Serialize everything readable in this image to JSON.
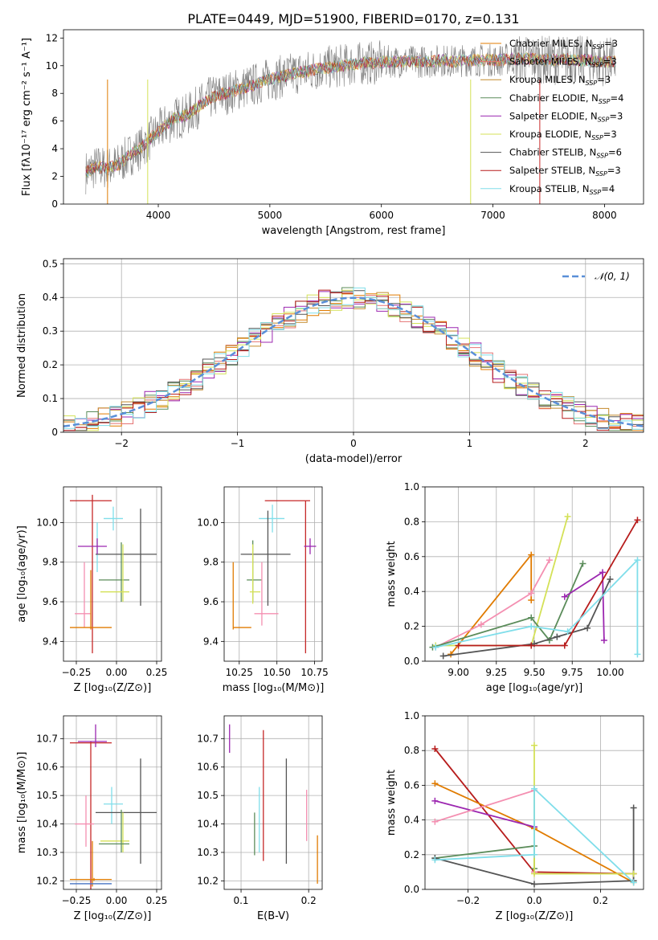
{
  "title": "PLATE=0449, MJD=51900, FIBERID=0170, z=0.131",
  "model_colors": [
    "#e07b00",
    "#8c5a3c",
    "#b07010",
    "#2e7d32",
    "#9c27b0",
    "#d4e157",
    "#424242",
    "#c62828",
    "#4dd0e1"
  ],
  "legend": [
    {
      "label": "Chabrier MILES, N",
      "sub": "SSP",
      "tail": "=3",
      "color": "#e07b00"
    },
    {
      "label": "Salpeter MILES, N",
      "sub": "SSP",
      "tail": "=3",
      "color": "#e57373"
    },
    {
      "label": "Kroupa MILES, N",
      "sub": "SSP",
      "tail": "=3",
      "color": "#c48a2c"
    },
    {
      "label": "Chabrier ELODIE, N",
      "sub": "SSP",
      "tail": "=4",
      "color": "#5b8c5a"
    },
    {
      "label": "Salpeter ELODIE, N",
      "sub": "SSP",
      "tail": "=3",
      "color": "#9c27b0"
    },
    {
      "label": "Kroupa ELODIE, N",
      "sub": "SSP",
      "tail": "=3",
      "color": "#d4e157"
    },
    {
      "label": "Chabrier STELIB, N",
      "sub": "SSP",
      "tail": "=6",
      "color": "#555555"
    },
    {
      "label": "Salpeter STELIB, N",
      "sub": "SSP",
      "tail": "=3",
      "color": "#b71c1c"
    },
    {
      "label": "Kroupa STELIB, N",
      "sub": "SSP",
      "tail": "=4",
      "color": "#80deea"
    }
  ],
  "chart_data": [
    {
      "type": "line",
      "name": "spectrum",
      "xlabel": "wavelength [Angstrom, rest frame]",
      "ylabel": "Flux [fλ10⁻¹⁷ erg cm⁻² s⁻¹ A⁻¹]",
      "xlim": [
        3150,
        8350
      ],
      "ylim": [
        0,
        12.6
      ],
      "xticks": [
        4000,
        5000,
        6000,
        7000,
        8000
      ],
      "yticks": [
        0,
        2,
        4,
        6,
        8,
        10,
        12
      ],
      "x": [
        3350,
        3450,
        3550,
        3650,
        3750,
        3850,
        3950,
        4050,
        4150,
        4250,
        4350,
        4450,
        4550,
        4650,
        4750,
        4850,
        4950,
        5050,
        5150,
        5250,
        5350,
        5450,
        5550,
        5650,
        5750,
        5850,
        5950,
        6050,
        6150,
        6250,
        6350,
        6450,
        6550,
        6650,
        6750,
        6850,
        6950,
        7050,
        7150,
        7250,
        7350,
        7450,
        7550,
        7650,
        7750,
        7850,
        7950,
        8050
      ],
      "y": [
        2.3,
        2.7,
        2.6,
        2.9,
        3.6,
        4.1,
        4.9,
        5.6,
        6.2,
        6.4,
        7.0,
        7.6,
        7.9,
        8.1,
        8.4,
        8.6,
        8.9,
        9.1,
        9.3,
        9.5,
        9.6,
        9.8,
        9.9,
        10.0,
        10.1,
        10.2,
        10.2,
        10.3,
        10.3,
        10.3,
        10.3,
        10.3,
        10.4,
        10.3,
        10.4,
        10.4,
        10.4,
        10.4,
        10.5,
        10.5,
        10.5,
        10.4,
        10.4,
        10.5,
        10.4,
        10.4,
        10.3,
        10.3
      ]
    },
    {
      "type": "line",
      "name": "residuals",
      "xlabel": "(data-model)/error",
      "ylabel": "Normed distribution",
      "xlim": [
        -2.5,
        2.5
      ],
      "ylim": [
        0,
        0.515
      ],
      "xticks": [
        -2,
        -1,
        0,
        1,
        2
      ],
      "yticks": [
        0.0,
        0.1,
        0.2,
        0.3,
        0.4,
        0.5
      ],
      "legend": "𝒩(0, 1)"
    },
    {
      "type": "scatter",
      "name": "age_vs_Z",
      "xlabel": "Z [log₁₀(Z/Z⊙)]",
      "ylabel": "age  [log₁₀(age/yr)]",
      "xlim": [
        -0.33,
        0.28
      ],
      "ylim": [
        9.3,
        10.18
      ],
      "xticks": [
        -0.25,
        0.0,
        0.25
      ],
      "yticks": [
        9.4,
        9.6,
        9.8,
        10.0
      ],
      "points": [
        {
          "x": -0.16,
          "xe": [
            -0.29,
            -0.03
          ],
          "y": 10.11,
          "ye": [
            10.11,
            10.11
          ],
          "c": "#c62828"
        },
        {
          "x": -0.15,
          "xe": [
            -0.15,
            -0.15
          ],
          "y": 9.72,
          "ye": [
            9.34,
            10.14
          ],
          "c": "#c62828"
        },
        {
          "x": -0.02,
          "xe": [
            -0.08,
            0.04
          ],
          "y": 10.02,
          "ye": [
            9.96,
            10.08
          ],
          "c": "#80deea"
        },
        {
          "x": -0.12,
          "xe": [
            -0.12,
            -0.12
          ],
          "y": 9.92,
          "ye": [
            9.75,
            10.0
          ],
          "c": "#80deea"
        },
        {
          "x": 0.15,
          "xe": [
            -0.13,
            0.25
          ],
          "y": 9.84,
          "ye": [
            9.58,
            10.07
          ],
          "c": "#555555"
        },
        {
          "x": -0.12,
          "xe": [
            -0.24,
            -0.06
          ],
          "y": 9.88,
          "ye": [
            9.84,
            9.92
          ],
          "c": "#9c27b0"
        },
        {
          "x": 0.03,
          "xe": [
            -0.11,
            0.08
          ],
          "y": 9.71,
          "ye": [
            9.6,
            9.9
          ],
          "c": "#5b8c5a"
        },
        {
          "x": 0.04,
          "xe": [
            -0.1,
            0.08
          ],
          "y": 9.65,
          "ye": [
            9.6,
            9.89
          ],
          "c": "#d4e157"
        },
        {
          "x": -0.2,
          "xe": [
            -0.26,
            -0.16
          ],
          "y": 9.54,
          "ye": [
            9.47,
            9.8
          ],
          "c": "#f48fb1"
        },
        {
          "x": -0.13,
          "xe": [
            -0.29,
            -0.03
          ],
          "y": 9.47,
          "ye": [
            9.47,
            9.47
          ],
          "c": "#e07b00"
        },
        {
          "x": -0.16,
          "xe": [
            -0.16,
            -0.16
          ],
          "y": 9.6,
          "ye": [
            9.46,
            9.76
          ],
          "c": "#e07b00"
        }
      ]
    },
    {
      "type": "scatter",
      "name": "age_vs_mass",
      "xlabel": "mass [log₁₀(M/M⊙)]",
      "ylabel": "",
      "xlim": [
        10.15,
        10.8
      ],
      "ylim": [
        9.3,
        10.18
      ],
      "xticks": [
        10.25,
        10.5,
        10.75
      ],
      "yticks": [
        9.4,
        9.6,
        9.8,
        10.0
      ],
      "points": [
        {
          "x": 10.58,
          "xe": [
            10.42,
            10.72
          ],
          "y": 10.11,
          "ye": [
            10.11,
            10.11
          ],
          "c": "#c62828"
        },
        {
          "x": 10.69,
          "xe": [
            10.69,
            10.69
          ],
          "y": 9.72,
          "ye": [
            9.34,
            10.11
          ],
          "c": "#c62828"
        },
        {
          "x": 10.47,
          "xe": [
            10.38,
            10.55
          ],
          "y": 10.02,
          "ye": [
            9.95,
            10.09
          ],
          "c": "#80deea"
        },
        {
          "x": 10.44,
          "xe": [
            10.26,
            10.59
          ],
          "y": 9.84,
          "ye": [
            9.58,
            10.06
          ],
          "c": "#555555"
        },
        {
          "x": 10.72,
          "xe": [
            10.68,
            10.76
          ],
          "y": 9.88,
          "ye": [
            9.84,
            9.92
          ],
          "c": "#9c27b0"
        },
        {
          "x": 10.34,
          "xe": [
            10.3,
            10.4
          ],
          "y": 9.71,
          "ye": [
            9.6,
            9.91
          ],
          "c": "#5b8c5a"
        },
        {
          "x": 10.34,
          "xe": [
            10.32,
            10.39
          ],
          "y": 9.65,
          "ye": [
            9.59,
            9.89
          ],
          "c": "#d4e157"
        },
        {
          "x": 10.4,
          "xe": [
            10.35,
            10.51
          ],
          "y": 9.54,
          "ye": [
            9.48,
            9.8
          ],
          "c": "#f48fb1"
        },
        {
          "x": 10.21,
          "xe": [
            10.21,
            10.33
          ],
          "y": 9.47,
          "ye": [
            9.47,
            9.47
          ],
          "c": "#e07b00"
        },
        {
          "x": 10.21,
          "xe": [
            10.21,
            10.21
          ],
          "y": 9.6,
          "ye": [
            9.46,
            9.8
          ],
          "c": "#e07b00"
        }
      ]
    },
    {
      "type": "line",
      "name": "mass_weight_vs_age",
      "xlabel": "age  [log₁₀(age/yr)]",
      "ylabel": "mass weight",
      "xlim": [
        8.78,
        10.22
      ],
      "ylim": [
        0,
        1.0
      ],
      "xticks": [
        9.0,
        9.25,
        9.5,
        9.75,
        10.0
      ],
      "yticks": [
        0.0,
        0.2,
        0.4,
        0.6,
        0.8,
        1.0
      ],
      "series": [
        {
          "c": "#e07b00",
          "x": [
            8.95,
            9.48,
            9.48
          ],
          "y": [
            0.04,
            0.61,
            0.35
          ]
        },
        {
          "c": "#d4e157",
          "x": [
            8.85,
            9.48,
            9.72
          ],
          "y": [
            0.09,
            0.09,
            0.83
          ]
        },
        {
          "c": "#f48fb1",
          "x": [
            8.85,
            9.15,
            9.48,
            9.6
          ],
          "y": [
            0.08,
            0.21,
            0.39,
            0.58
          ]
        },
        {
          "c": "#5b8c5a",
          "x": [
            8.83,
            9.48,
            9.6,
            9.82
          ],
          "y": [
            0.08,
            0.25,
            0.12,
            0.56
          ]
        },
        {
          "c": "#9c27b0",
          "x": [
            9.7,
            9.95,
            9.96
          ],
          "y": [
            0.37,
            0.51,
            0.12
          ]
        },
        {
          "c": "#555555",
          "x": [
            8.9,
            9.5,
            9.65,
            9.85,
            10.0
          ],
          "y": [
            0.03,
            0.1,
            0.14,
            0.19,
            0.47
          ]
        },
        {
          "c": "#b71c1c",
          "x": [
            9.0,
            9.48,
            9.7,
            10.18
          ],
          "y": [
            0.09,
            0.09,
            0.09,
            0.81
          ]
        },
        {
          "c": "#80deea",
          "x": [
            8.85,
            9.48,
            9.72,
            10.18,
            10.18
          ],
          "y": [
            0.08,
            0.2,
            0.17,
            0.58,
            0.04
          ]
        }
      ]
    },
    {
      "type": "scatter",
      "name": "mass_vs_Z",
      "xlabel": "Z [log₁₀(Z/Z⊙)]",
      "ylabel": "mass [log₁₀(M/M⊙)]",
      "xlim": [
        -0.33,
        0.28
      ],
      "ylim": [
        10.17,
        10.78
      ],
      "xticks": [
        -0.25,
        0.0,
        0.25
      ],
      "yticks": [
        10.2,
        10.3,
        10.4,
        10.5,
        10.6,
        10.7
      ],
      "points": [
        {
          "x": -0.16,
          "xe": [
            -0.29,
            -0.03
          ],
          "y": 10.685,
          "ye": [
            10.17,
            10.69
          ],
          "c": "#c62828"
        },
        {
          "x": -0.13,
          "xe": [
            -0.24,
            -0.06
          ],
          "y": 10.69,
          "ye": [
            10.67,
            10.75
          ],
          "c": "#9c27b0"
        },
        {
          "x": -0.03,
          "xe": [
            -0.08,
            0.04
          ],
          "y": 10.47,
          "ye": [
            10.4,
            10.53
          ],
          "c": "#80deea"
        },
        {
          "x": 0.15,
          "xe": [
            -0.13,
            0.25
          ],
          "y": 10.44,
          "ye": [
            10.26,
            10.63
          ],
          "c": "#555555"
        },
        {
          "x": 0.04,
          "xe": [
            -0.1,
            0.08
          ],
          "y": 10.34,
          "ye": [
            10.3,
            10.44
          ],
          "c": "#d4e157"
        },
        {
          "x": 0.03,
          "xe": [
            -0.11,
            0.08
          ],
          "y": 10.33,
          "ye": [
            10.3,
            10.45
          ],
          "c": "#5b8c5a"
        },
        {
          "x": -0.19,
          "xe": [
            -0.26,
            -0.14
          ],
          "y": 10.4,
          "ye": [
            10.32,
            10.5
          ],
          "c": "#f48fb1"
        },
        {
          "x": -0.14,
          "xe": [
            -0.29,
            -0.03
          ],
          "y": 10.205,
          "ye": [
            10.2,
            10.21
          ],
          "c": "#e07b00"
        },
        {
          "x": -0.15,
          "xe": [
            -0.15,
            -0.15
          ],
          "y": 10.28,
          "ye": [
            10.18,
            10.34
          ],
          "c": "#e07b00"
        },
        {
          "x": -0.15,
          "xe": [
            -0.29,
            -0.03
          ],
          "y": 10.19,
          "ye": [
            10.19,
            10.19
          ],
          "c": "#4472c4"
        }
      ]
    },
    {
      "type": "scatter",
      "name": "mass_vs_EBV",
      "xlabel": "E(B-V)",
      "ylabel": "",
      "xlim": [
        0.075,
        0.22
      ],
      "ylim": [
        10.17,
        10.78
      ],
      "xticks": [
        0.1,
        0.2
      ],
      "yticks": [
        10.2,
        10.3,
        10.4,
        10.5,
        10.6,
        10.7
      ],
      "points": [
        {
          "x": 0.083,
          "xe": [
            0.083,
            0.083
          ],
          "y": 10.7,
          "ye": [
            10.65,
            10.75
          ],
          "c": "#9c27b0"
        },
        {
          "x": 0.133,
          "xe": [
            0.133,
            0.133
          ],
          "y": 10.5,
          "ye": [
            10.27,
            10.73
          ],
          "c": "#c62828"
        },
        {
          "x": 0.127,
          "xe": [
            0.127,
            0.127
          ],
          "y": 10.4,
          "ye": [
            10.3,
            10.53
          ],
          "c": "#80deea"
        },
        {
          "x": 0.12,
          "xe": [
            0.12,
            0.12
          ],
          "y": 10.36,
          "ye": [
            10.29,
            10.44
          ],
          "c": "#5b8c5a"
        },
        {
          "x": 0.167,
          "xe": [
            0.167,
            0.167
          ],
          "y": 10.44,
          "ye": [
            10.26,
            10.63
          ],
          "c": "#555555"
        },
        {
          "x": 0.197,
          "xe": [
            0.197,
            0.197
          ],
          "y": 10.43,
          "ye": [
            10.34,
            10.52
          ],
          "c": "#f48fb1"
        },
        {
          "x": 0.213,
          "xe": [
            0.213,
            0.213
          ],
          "y": 10.28,
          "ye": [
            10.19,
            10.36
          ],
          "c": "#e07b00"
        }
      ]
    },
    {
      "type": "line",
      "name": "mass_weight_vs_Z",
      "xlabel": "Z [log₁₀(Z/Z⊙)]",
      "ylabel": "mass weight",
      "xlim": [
        -0.33,
        0.33
      ],
      "ylim": [
        0,
        1.0
      ],
      "xticks": [
        -0.2,
        0.0,
        0.2
      ],
      "yticks": [
        0.0,
        0.2,
        0.4,
        0.6,
        0.8,
        1.0
      ],
      "series": [
        {
          "c": "#b71c1c",
          "x": [
            -0.3,
            0.0,
            0.3
          ],
          "y": [
            0.81,
            0.1,
            0.09
          ]
        },
        {
          "c": "#e07b00",
          "x": [
            -0.3,
            0.0,
            0.3
          ],
          "y": [
            0.61,
            0.35,
            0.04
          ]
        },
        {
          "c": "#9c27b0",
          "x": [
            -0.3,
            0.0
          ],
          "y": [
            0.51,
            0.36
          ]
        },
        {
          "c": "#f48fb1",
          "x": [
            -0.3,
            0.0,
            0.0
          ],
          "y": [
            0.39,
            0.57,
            0.1
          ]
        },
        {
          "c": "#5b8c5a",
          "x": [
            -0.3,
            0.0,
            0.0
          ],
          "y": [
            0.18,
            0.25,
            0.12
          ]
        },
        {
          "c": "#555555",
          "x": [
            -0.3,
            0.0,
            0.3,
            0.3
          ],
          "y": [
            0.18,
            0.03,
            0.05,
            0.47
          ]
        },
        {
          "c": "#d4e157",
          "x": [
            0.0,
            0.0,
            0.3
          ],
          "y": [
            0.83,
            0.09,
            0.09
          ]
        },
        {
          "c": "#80deea",
          "x": [
            -0.3,
            0.0,
            0.0,
            0.3
          ],
          "y": [
            0.17,
            0.2,
            0.58,
            0.04
          ]
        }
      ]
    }
  ]
}
